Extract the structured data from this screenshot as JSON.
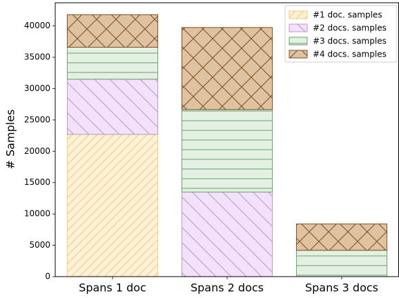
{
  "chart_data": {
    "type": "stacked_bar",
    "ylabel": "# Samples",
    "categories": [
      "Spans 1 doc",
      "Spans 2 docs",
      "Spans 3 docs"
    ],
    "series": [
      {
        "name": "#1 doc. samples",
        "color": "#fff2d9",
        "edgecolor": "#f5c97a",
        "hatch": "/",
        "values": [
          22700,
          0,
          0
        ]
      },
      {
        "name": "#2 docs. samples",
        "color": "#f3e0fb",
        "edgecolor": "#b89ac8",
        "hatch": "\\",
        "values": [
          8800,
          13500,
          0
        ]
      },
      {
        "name": "#3 docs. samples",
        "color": "#e2f1e2",
        "edgecolor": "#6aa06a",
        "hatch": "-",
        "values": [
          5100,
          13150,
          4200
        ]
      },
      {
        "name": "#4 docs. samples",
        "color": "#dfc2a0",
        "edgecolor": "#7a4f25",
        "hatch": "x",
        "values": [
          5200,
          13100,
          4200
        ]
      }
    ],
    "ylim": [
      0,
      43700
    ],
    "yticks": [
      0,
      5000,
      10000,
      15000,
      20000,
      25000,
      30000,
      35000,
      40000
    ],
    "legend": "upper right"
  }
}
